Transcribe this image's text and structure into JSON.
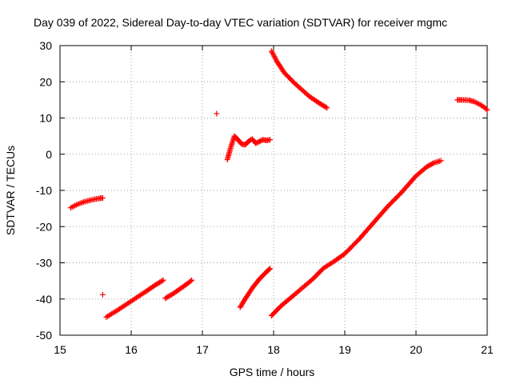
{
  "chart_data": {
    "type": "scatter",
    "title": "Day 039 of 2022, Sidereal Day-to-day VTEC variation (SDTVAR) for receiver mgmc",
    "xlabel": "GPS time / hours",
    "ylabel": "SDTVAR / TECUs",
    "xlim": [
      15,
      21
    ],
    "ylim": [
      -50,
      30
    ],
    "xticks": [
      15,
      16,
      17,
      18,
      19,
      20,
      21
    ],
    "yticks": [
      -50,
      -40,
      -30,
      -20,
      -10,
      0,
      10,
      20,
      30
    ],
    "grid": true,
    "legend": "none",
    "marker": "+",
    "color": "#ff0000",
    "series": [
      {
        "x": [
          15.15,
          15.25,
          15.35,
          15.45,
          15.55,
          15.6
        ],
        "y": [
          -14.8,
          -13.8,
          -13.1,
          -12.6,
          -12.2,
          -12.1
        ]
      },
      {
        "x": [
          15.6
        ],
        "y": [
          -38.8
        ]
      },
      {
        "x": [
          15.65,
          15.8,
          16.0,
          16.2,
          16.35,
          16.45
        ],
        "y": [
          -45.0,
          -43.2,
          -40.6,
          -38.0,
          -36.0,
          -34.8
        ]
      },
      {
        "x": [
          16.48,
          16.6,
          16.7,
          16.8,
          16.85
        ],
        "y": [
          -39.8,
          -38.4,
          -37.0,
          -35.6,
          -34.8
        ]
      },
      {
        "x": [
          17.2
        ],
        "y": [
          11.2
        ]
      },
      {
        "x": [
          17.35,
          17.4,
          17.45,
          17.5,
          17.55,
          17.6,
          17.65,
          17.7,
          17.75,
          17.8,
          17.85,
          17.9,
          17.95
        ],
        "y": [
          -1.5,
          2.0,
          5.0,
          4.0,
          2.8,
          2.6,
          3.6,
          4.2,
          3.0,
          3.5,
          4.0,
          3.8,
          4.0
        ]
      },
      {
        "x": [
          17.53,
          17.6,
          17.7,
          17.8,
          17.9,
          17.95
        ],
        "y": [
          -42.3,
          -40.0,
          -37.0,
          -34.5,
          -32.5,
          -31.6
        ]
      },
      {
        "x": [
          17.97,
          18.05,
          18.15,
          18.3,
          18.5,
          18.65,
          18.75
        ],
        "y": [
          28.5,
          25.5,
          22.5,
          19.5,
          16.0,
          14.0,
          12.8
        ]
      },
      {
        "x": [
          17.97,
          18.1,
          18.25,
          18.4,
          18.55,
          18.7,
          18.85,
          19.0,
          19.2,
          19.4,
          19.6,
          19.8,
          20.0,
          20.15,
          20.25,
          20.35
        ],
        "y": [
          -44.6,
          -42.0,
          -39.5,
          -37.0,
          -34.5,
          -31.5,
          -29.6,
          -27.5,
          -23.5,
          -19.0,
          -14.5,
          -10.5,
          -6.0,
          -3.5,
          -2.4,
          -1.8
        ]
      },
      {
        "x": [
          20.58,
          20.65,
          20.75,
          20.82,
          20.9,
          20.97,
          21.0
        ],
        "y": [
          15.0,
          15.0,
          14.9,
          14.5,
          13.7,
          12.8,
          12.2
        ]
      }
    ]
  }
}
